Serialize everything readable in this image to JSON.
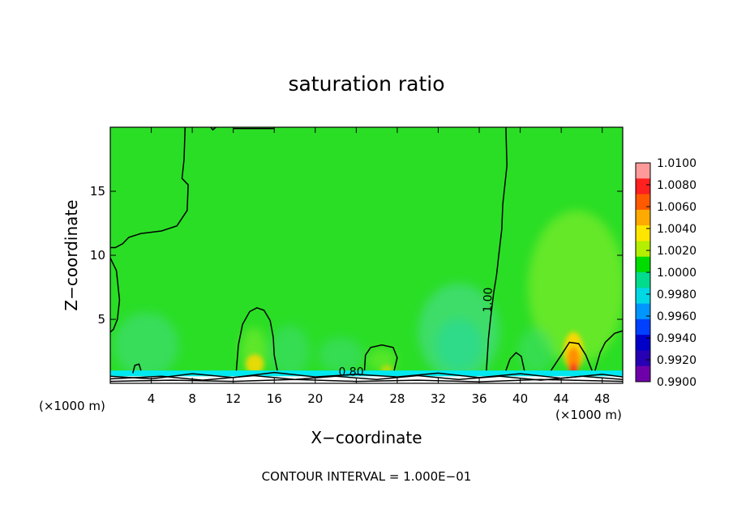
{
  "chart_data": {
    "type": "heatmap",
    "title": "saturation ratio",
    "xlabel": "X−coordinate",
    "ylabel": "Z−coordinate",
    "x_unit_left": "(×1000 m)",
    "x_unit_right": "(×1000 m)",
    "footer": "CONTOUR INTERVAL = 1.000E−01",
    "xlim": [
      0,
      50
    ],
    "ylim": [
      0,
      20
    ],
    "x_ticks": [
      "4",
      "8",
      "12",
      "16",
      "20",
      "24",
      "28",
      "32",
      "36",
      "40",
      "44",
      "48"
    ],
    "x_tick_values": [
      4,
      8,
      12,
      16,
      20,
      24,
      28,
      32,
      36,
      40,
      44,
      48
    ],
    "y_ticks": [
      "5",
      "10",
      "15"
    ],
    "y_tick_values": [
      5,
      10,
      15
    ],
    "contour_labels": [
      {
        "text": "1.00",
        "x": 37.2,
        "y": 6.5
      },
      {
        "text": "0.80",
        "x": 23.5,
        "y": 0.6
      }
    ],
    "colorbar": {
      "labels": [
        "1.0100",
        "1.0080",
        "1.0060",
        "1.0040",
        "1.0020",
        "1.0000",
        "0.9980",
        "0.9960",
        "0.9940",
        "0.9920",
        "0.9900"
      ],
      "colors": [
        "#ff9a9a",
        "#ff2020",
        "#ff5a00",
        "#ffaa00",
        "#ffe600",
        "#b4ee00",
        "#00dc00",
        "#00dc8c",
        "#00d8e6",
        "#0096ff",
        "#0040ff",
        "#0000c8",
        "#2800b4",
        "#6e00aa"
      ]
    },
    "field_colors": {
      "background": "#2ade26",
      "moist": "#6ce92a",
      "dry": "#3edc6e",
      "dryer": "#20d8a0",
      "warm": "#ffd800",
      "hot": "#ff8a00",
      "peak": "#ff2a1a",
      "surface": "#00e8f0"
    }
  }
}
